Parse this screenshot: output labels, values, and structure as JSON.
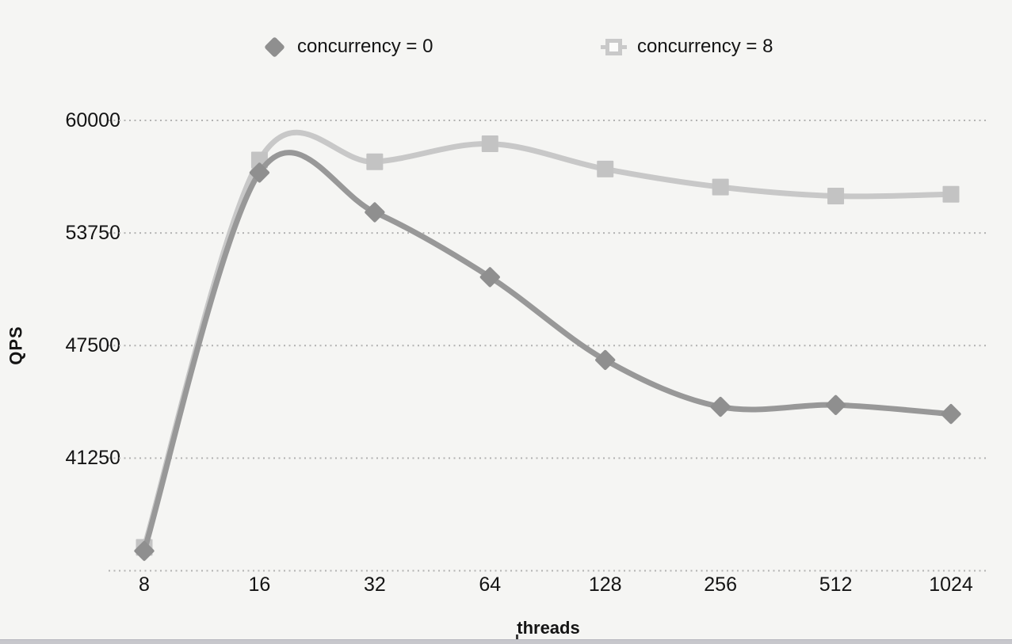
{
  "page": {
    "background": "#f5f5f3"
  },
  "legend": {
    "position": "top",
    "items": [
      {
        "label": "concurrency = 0",
        "marker": "diamond",
        "color": "#8f8f8f"
      },
      {
        "label": "concurrency = 8",
        "marker": "hollow-square",
        "color": "#c9c9c9"
      }
    ]
  },
  "chart_data": {
    "type": "line",
    "title": "",
    "xlabel": "threads",
    "ylabel": "QPS",
    "x_scale": "log2-categorical",
    "categories": [
      "8",
      "16",
      "32",
      "64",
      "128",
      "256",
      "512",
      "1024"
    ],
    "series": [
      {
        "name": "concurrency = 0",
        "marker": "diamond",
        "line_color": "#989898",
        "marker_color": "#8f8f8f",
        "values": [
          36100,
          57100,
          54900,
          51300,
          46700,
          44100,
          44200,
          43700
        ]
      },
      {
        "name": "concurrency = 8",
        "marker": "square",
        "line_color": "#c8c8c8",
        "marker_color": "#c3c3c3",
        "values": [
          36300,
          57800,
          57700,
          58700,
          57300,
          56300,
          55800,
          55900
        ]
      }
    ],
    "y_ticks": [
      {
        "value": 60000,
        "label": "60000"
      },
      {
        "value": 53750,
        "label": "53750"
      },
      {
        "value": 47500,
        "label": "47500"
      },
      {
        "value": 41250,
        "label": "41250"
      },
      {
        "value": 35000,
        "label": ""
      }
    ],
    "ylim": [
      35000,
      60000
    ],
    "grid": "horizontal-dotted",
    "grid_color": "#b2b2b2",
    "legend_position": "top"
  }
}
